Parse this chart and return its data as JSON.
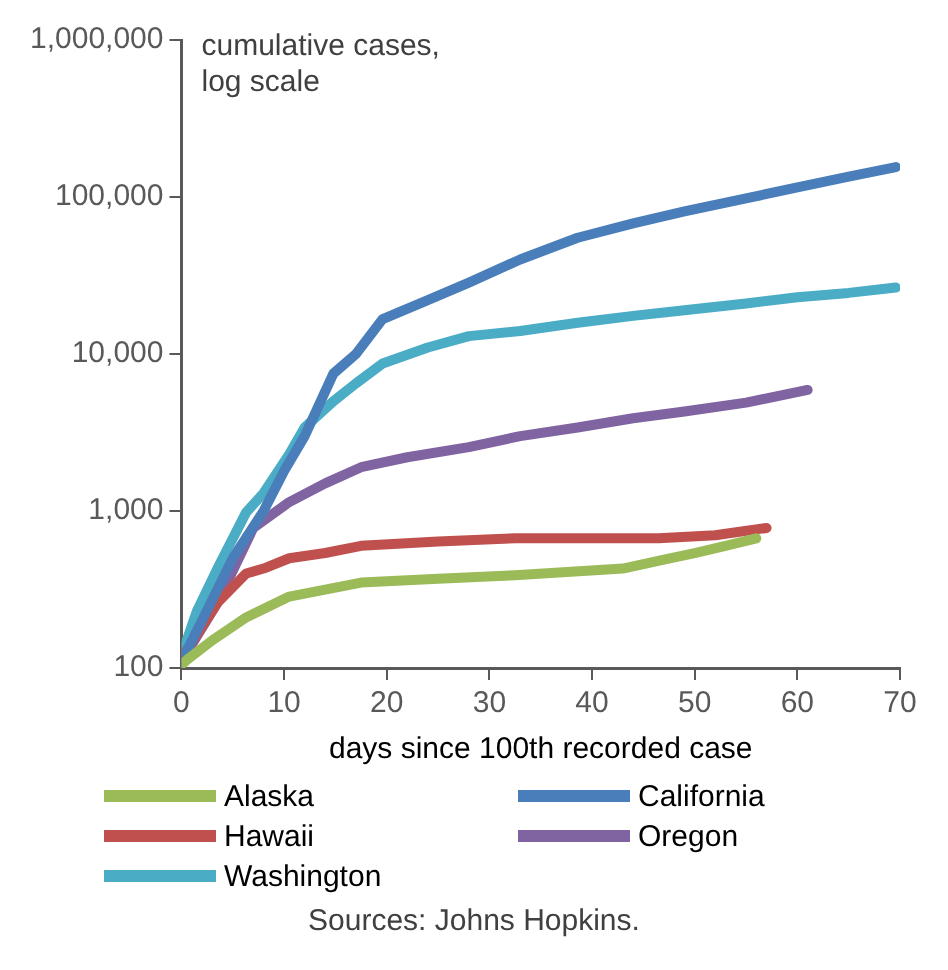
{
  "chart_data": {
    "type": "line",
    "ylabel": "cumulative cases,\nlog scale",
    "xlabel": "days since 100th recorded case",
    "log": "y",
    "grid": false,
    "legend": "bottom",
    "marker": "none",
    "line_style": "solid",
    "xlim": [
      0,
      70
    ],
    "xticks": [
      0,
      10,
      20,
      30,
      40,
      50,
      60,
      70
    ],
    "ylim": [
      100,
      1000000
    ],
    "yticks": [
      {
        "value": 100,
        "label": "100"
      },
      {
        "value": 1000,
        "label": "1,000"
      },
      {
        "value": 10000,
        "label": "10,000"
      },
      {
        "value": 100000,
        "label": "100,000"
      },
      {
        "value": 1000000,
        "label": "1,000,000"
      }
    ],
    "annotations": [
      "Sources: Johns Hopkins."
    ],
    "series": [
      {
        "name": "Alaska",
        "color": "#9bbb59",
        "x": [
          0,
          0.7,
          3,
          6.3,
          10.5,
          17.5,
          25,
          32.5,
          43,
          47,
          50,
          53,
          56
        ],
        "values": [
          105,
          115,
          150,
          210,
          285,
          350,
          370,
          390,
          430,
          490,
          540,
          600,
          670
        ]
      },
      {
        "name": "California",
        "color": "#4a7ebb",
        "x": [
          0,
          2,
          5,
          8,
          10,
          12,
          14.8,
          17,
          19.6,
          24,
          28,
          33,
          38.6,
          44,
          49,
          55,
          60,
          65,
          69.6
        ],
        "values": [
          110,
          200,
          500,
          1000,
          1800,
          3000,
          7500,
          10000,
          16700,
          22000,
          28500,
          40000,
          55000,
          68000,
          81000,
          98000,
          115000,
          135000,
          155000
        ]
      },
      {
        "name": "Hawaii",
        "color": "#c0504d",
        "x": [
          0,
          3.5,
          6.3,
          8,
          10.5,
          14,
          17.5,
          25,
          32.5,
          40,
          46.5,
          52,
          57
        ],
        "values": [
          115,
          260,
          400,
          430,
          500,
          540,
          600,
          640,
          670,
          670,
          670,
          700,
          780
        ]
      },
      {
        "name": "Oregon",
        "color": "#8064a2",
        "x": [
          0,
          3.5,
          7,
          10.5,
          14,
          17.5,
          22,
          28,
          33,
          38.6,
          44,
          49,
          55,
          61
        ],
        "values": [
          110,
          260,
          780,
          1140,
          1500,
          1900,
          2200,
          2550,
          3000,
          3400,
          3900,
          4300,
          4900,
          5900
        ]
      },
      {
        "name": "Washington",
        "color": "#4bacc6",
        "x": [
          0,
          1.5,
          3.5,
          6.3,
          8,
          10.5,
          12,
          14.8,
          17,
          19.6,
          24,
          28,
          33,
          38.6,
          44,
          49,
          55,
          60,
          65,
          69.6
        ],
        "values": [
          120,
          230,
          430,
          980,
          1300,
          2300,
          3400,
          5000,
          6500,
          8700,
          11000,
          13000,
          14000,
          15800,
          17500,
          19000,
          21000,
          23000,
          24500,
          26500
        ]
      }
    ]
  }
}
